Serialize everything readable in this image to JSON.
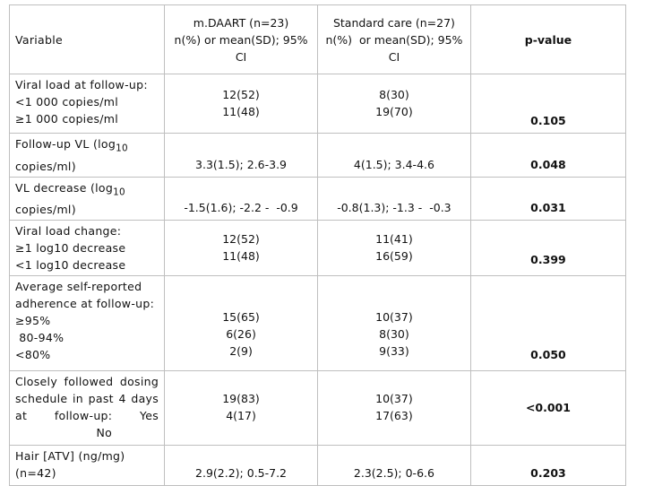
{
  "table": {
    "header": [
      [
        "Variable"
      ],
      [
        "m.DAART (n=23)",
        "n(%) or mean(SD); 95%",
        "CI"
      ],
      [
        "Standard care (n=27)",
        "n(%)  or mean(SD); 95%",
        "CI"
      ],
      [
        "p-value"
      ]
    ],
    "rows": [
      {
        "variable": [
          "Viral load at follow-up:",
          "<1 000 copies/ml",
          "≥1 000 copies/ml"
        ],
        "daart": [
          "12(52)",
          "11(48)"
        ],
        "standard": [
          "8(30)",
          "19(70)"
        ],
        "p": "0.105"
      },
      {
        "variable": [
          {
            "text": "Follow-up VL (log",
            "sub": "10"
          },
          "copies/ml)"
        ],
        "daart": [
          "3.3(1.5); 2.6-3.9"
        ],
        "standard": [
          "4(1.5); 3.4-4.6"
        ],
        "p": "0.048"
      },
      {
        "variable": [
          {
            "text": "VL decrease (log",
            "sub": "10"
          },
          "copies/ml)"
        ],
        "daart": [
          "-1.5(1.6); -2.2 -  -0.9"
        ],
        "standard": [
          "-0.8(1.3); -1.3 -  -0.3"
        ],
        "p": "0.031"
      },
      {
        "variable": [
          "Viral load change:",
          "≥1 log10 decrease",
          "<1 log10 decrease"
        ],
        "daart": [
          "12(52)",
          "11(48)"
        ],
        "standard": [
          "11(41)",
          "16(59)"
        ],
        "p": "0.399"
      },
      {
        "variable": [
          "Average self-reported",
          "adherence at follow-up:",
          "≥95%",
          " 80-94%",
          "<80%"
        ],
        "daart": [
          "15(65)",
          "6(26)",
          "2(9)"
        ],
        "standard": [
          "10(37)",
          "8(30)",
          "9(33)"
        ],
        "p": "0.050"
      },
      {
        "variable": [
          "Closely followed dosing",
          "schedule in past 4 days",
          "at follow-up: Yes",
          "No"
        ],
        "daart": [
          "19(83)",
          "4(17)"
        ],
        "standard": [
          "10(37)",
          "17(63)"
        ],
        "p": "<0.001"
      },
      {
        "variable": [
          "Hair [ATV] (ng/mg)",
          "(n=42)"
        ],
        "daart": [
          "2.9(2.2); 0.5-7.2"
        ],
        "standard": [
          "2.3(2.5); 0-6.6"
        ],
        "p": "0.203"
      }
    ]
  }
}
